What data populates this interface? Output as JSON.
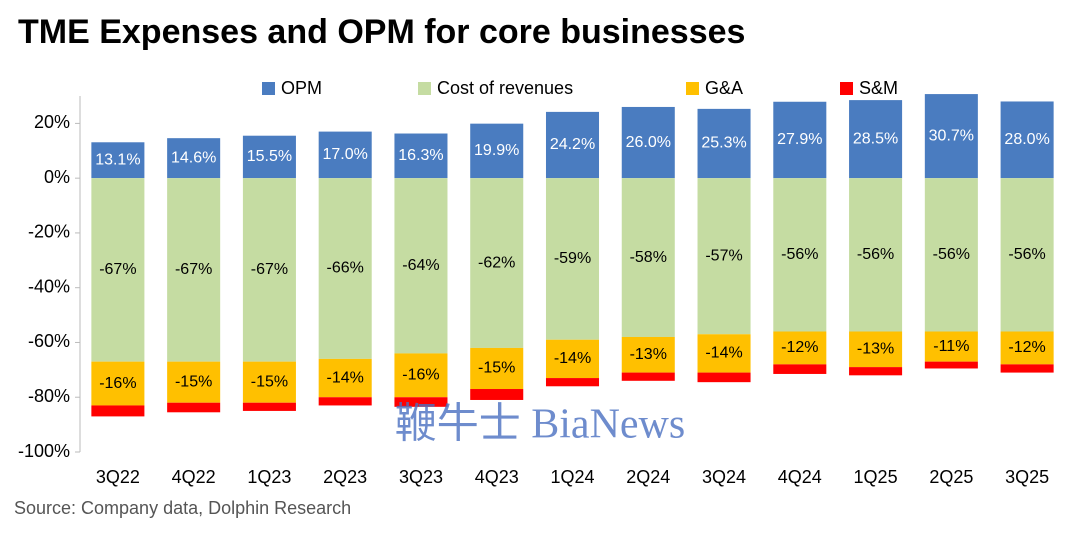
{
  "chart_data": {
    "type": "stacked-bar",
    "title": "TME Expenses and OPM for core businesses",
    "source": "Source: Company data, Dolphin Research",
    "watermark": "鞭牛士 BiaNews",
    "categories": [
      "3Q22",
      "4Q22",
      "1Q23",
      "2Q23",
      "3Q23",
      "4Q23",
      "1Q24",
      "2Q24",
      "3Q24",
      "4Q24",
      "1Q25",
      "2Q25",
      "3Q25"
    ],
    "series": [
      {
        "name": "OPM",
        "color": "#4a7cc0",
        "values": [
          13.1,
          14.6,
          15.5,
          17.0,
          16.3,
          19.9,
          24.2,
          26.0,
          25.3,
          27.9,
          28.5,
          30.7,
          28.0
        ],
        "value_labels": [
          "13.1%",
          "14.6%",
          "15.5%",
          "17.0%",
          "16.3%",
          "19.9%",
          "24.2%",
          "26.0%",
          "25.3%",
          "27.9%",
          "28.5%",
          "30.7%",
          "28.0%"
        ]
      },
      {
        "name": "Cost of revenues",
        "color": "#c5dca2",
        "values": [
          -67,
          -67,
          -67,
          -66,
          -64,
          -62,
          -59,
          -58,
          -57,
          -56,
          -56,
          -56,
          -56
        ],
        "value_labels": [
          "-67%",
          "-67%",
          "-67%",
          "-66%",
          "-64%",
          "-62%",
          "-59%",
          "-58%",
          "-57%",
          "-56%",
          "-56%",
          "-56%",
          "-56%"
        ]
      },
      {
        "name": "G&A",
        "color": "#ffc000",
        "values": [
          -16,
          -15,
          -15,
          -14,
          -16,
          -15,
          -14,
          -13,
          -14,
          -12,
          -13,
          -11,
          -12
        ],
        "value_labels": [
          "-16%",
          "-15%",
          "-15%",
          "-14%",
          "-16%",
          "-15%",
          "-14%",
          "-13%",
          "-14%",
          "-12%",
          "-13%",
          "-11%",
          "-12%"
        ]
      },
      {
        "name": "S&M",
        "color": "#ff0000",
        "values": [
          -4,
          -3.5,
          -3,
          -3,
          -3.5,
          -4,
          -3,
          -3,
          -3.5,
          -3.5,
          -3,
          -2.5,
          -3
        ]
      }
    ],
    "ylim": [
      -100,
      30
    ],
    "yticks": [
      {
        "value": -100,
        "label": "-100%"
      },
      {
        "value": -80,
        "label": "-80%"
      },
      {
        "value": -60,
        "label": "-60%"
      },
      {
        "value": -40,
        "label": "-40%"
      },
      {
        "value": -20,
        "label": "-20%"
      },
      {
        "value": 0,
        "label": "0%"
      },
      {
        "value": 20,
        "label": "20%"
      }
    ],
    "legend": "top"
  }
}
